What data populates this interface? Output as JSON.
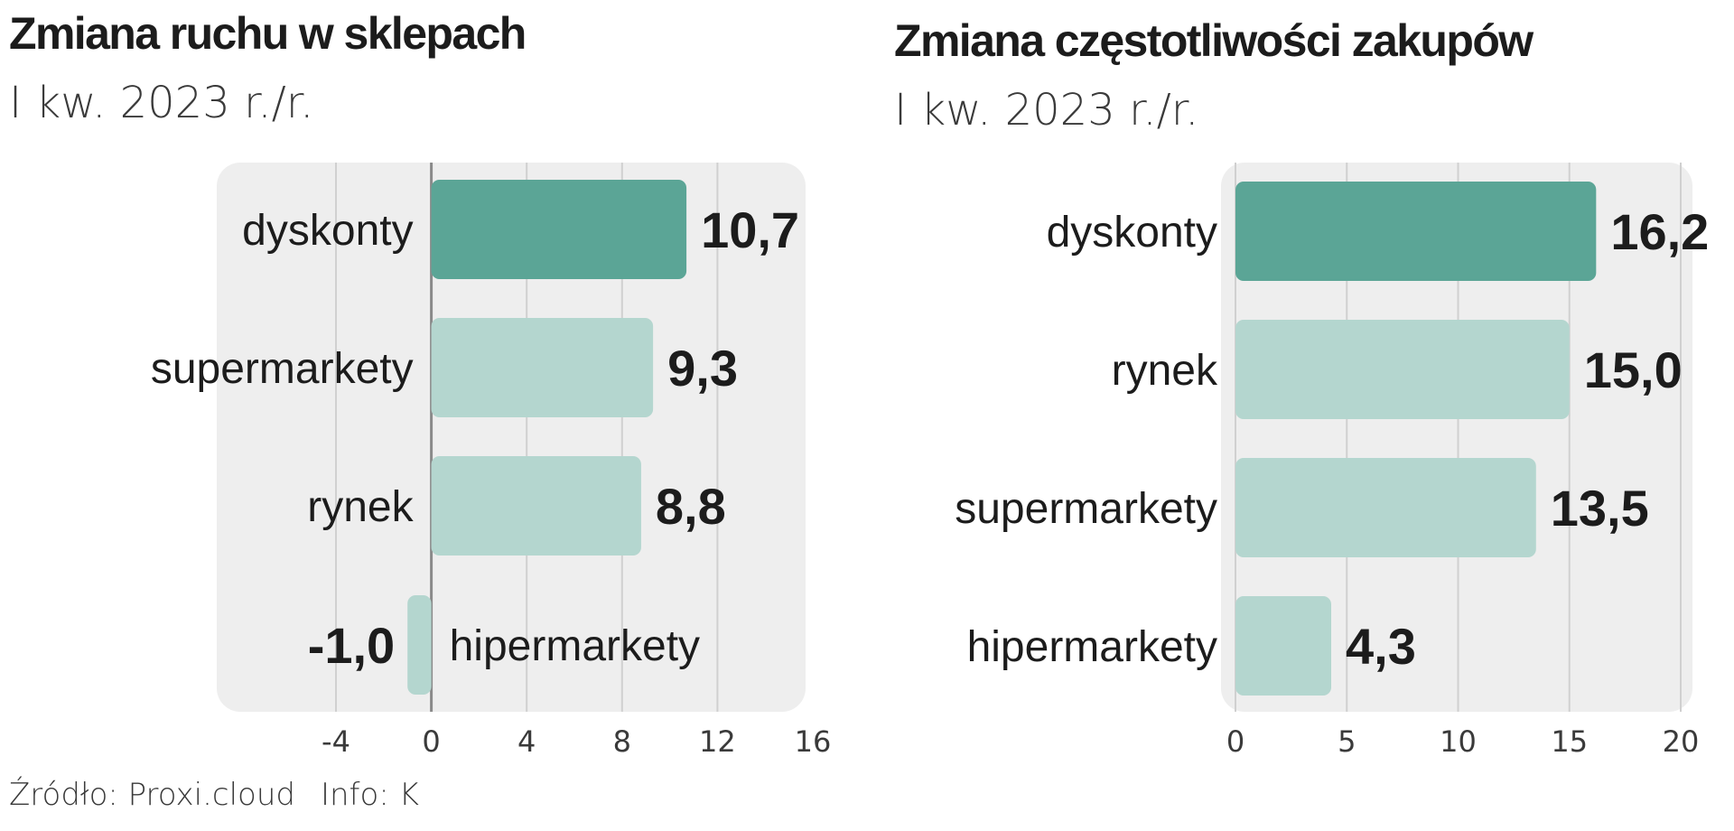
{
  "charts": {
    "left": {
      "title": "Zmiana ruchu w sklepach",
      "subtitle": "I kw. 2023 r./r."
    },
    "right": {
      "title": "Zmiana częstotliwości zakupów",
      "subtitle": "I kw. 2023 r./r."
    }
  },
  "footer": {
    "source": "Źródło: Proxi.cloud",
    "info": "Info: K"
  },
  "colors": {
    "highlight": "#5ba596",
    "normal": "#b4d6cf",
    "panel": "#eeeeee",
    "grid": "#d0d0d0",
    "zero_line": "#8a8a8a"
  },
  "chart_data": [
    {
      "type": "bar",
      "orientation": "horizontal",
      "title": "Zmiana ruchu w sklepach",
      "subtitle": "I kw. 2023 r./r.",
      "categories": [
        "dyskonty",
        "supermarkety",
        "rynek",
        "hipermarkety"
      ],
      "values": [
        10.7,
        9.3,
        8.8,
        -1.0
      ],
      "value_labels": [
        "10,7",
        "9,3",
        "8,8",
        "-1,0"
      ],
      "highlight": [
        true,
        false,
        false,
        false
      ],
      "xlim": [
        -4,
        16
      ],
      "xticks": [
        -4,
        0,
        4,
        8,
        12,
        16
      ],
      "xtick_labels": [
        "-4",
        "0",
        "4",
        "8",
        "12",
        "16"
      ],
      "grid": true,
      "zero_line": true
    },
    {
      "type": "bar",
      "orientation": "horizontal",
      "title": "Zmiana częstotliwości zakupów",
      "subtitle": "I kw. 2023 r./r.",
      "categories": [
        "dyskonty",
        "rynek",
        "supermarkety",
        "hipermarkety"
      ],
      "values": [
        16.2,
        15.0,
        13.5,
        4.3
      ],
      "value_labels": [
        "16,2",
        "15,0",
        "13,5",
        "4,3"
      ],
      "highlight": [
        true,
        false,
        false,
        false
      ],
      "xlim": [
        0,
        20
      ],
      "xticks": [
        0,
        5,
        10,
        15,
        20
      ],
      "xtick_labels": [
        "0",
        "5",
        "10",
        "15",
        "20"
      ],
      "grid": true,
      "zero_line": false
    }
  ]
}
